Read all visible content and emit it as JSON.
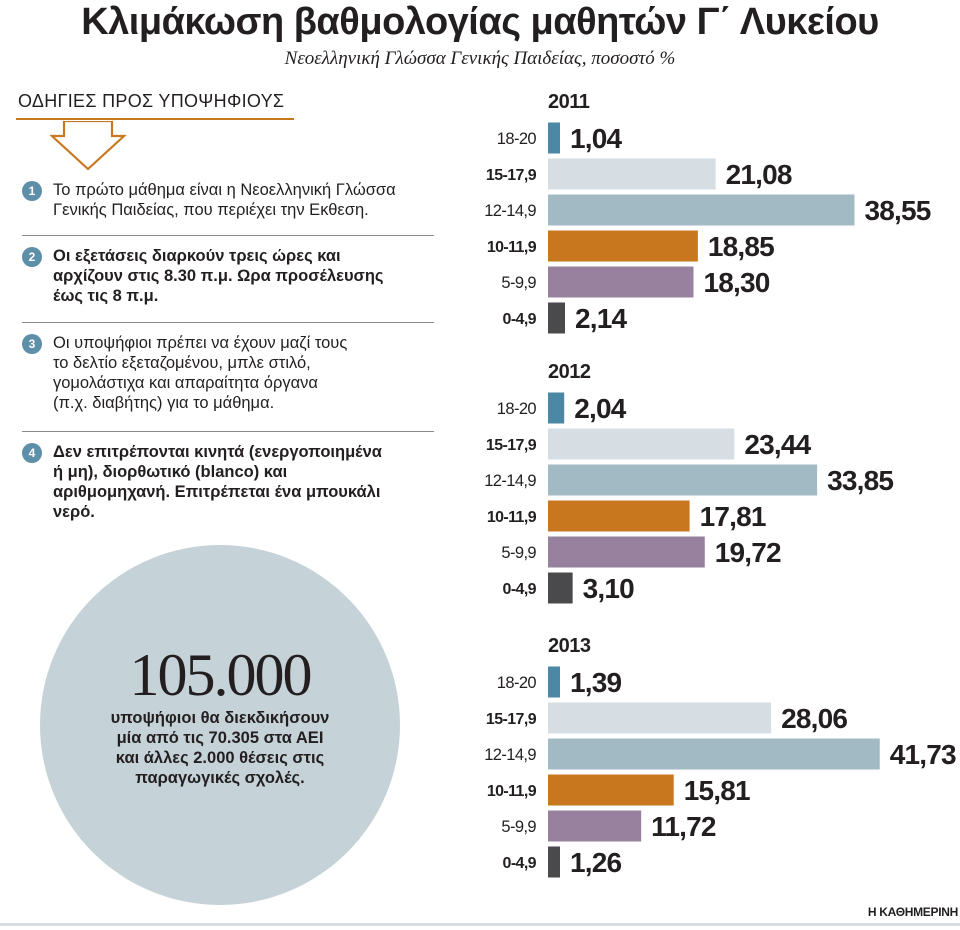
{
  "title": "Κλιμάκωση βαθμολογίας μαθητών Γ΄ Λυκείου",
  "subtitle": "Νεοελληνική Γλώσσα Γενικής Παιδείας, ποσοστό %",
  "guide": {
    "heading": "ΟΔΗΓΙΕΣ ΠΡΟΣ ΥΠΟΨΗΦΙΟΥΣ",
    "items": [
      {
        "num": "1",
        "text": "Το πρώτο μάθημα είναι η Νεοελληνική Γλώσσα\nΓενικής Παιδείας, που περιέχει την Εκθεση."
      },
      {
        "num": "2",
        "text": "Οι εξετάσεις διαρκούν τρεις ώρες και\nαρχίζουν στις 8.30 π.μ. Ωρα προσέλευσης\nέως τις  8 π.μ."
      },
      {
        "num": "3",
        "text": "Οι υποψήφιοι πρέπει να έχουν μαζί τους\nτο δελτίο εξεταζομένου, μπλε στιλό,\nγομολάστιχα και απαραίτητα όργανα\n(π.χ. διαβήτης) για το μάθημα."
      },
      {
        "num": "4",
        "text": "Δεν επιτρέπονται κινητά (ενεργοποιημένα\nή μη), διορθωτικό (blanco) και\nαριθμομηχανή. Επιτρέπεται ένα μπουκάλι\nνερό."
      }
    ]
  },
  "highlight": {
    "number": "105.000",
    "text": "υποψήφιοι θα διεκδικήσουν\nμία από τις 70.305 στα ΑΕΙ\nκαι άλλες 2.000 θέσεις στις\nπαραγωγικές σχολές."
  },
  "source": "Η ΚΑΘΗΜΕΡΙΝΗ",
  "chart_data": {
    "type": "bar",
    "orientation": "horizontal",
    "unit": "%",
    "categories": [
      "18-20",
      "15-17,9",
      "12-14,9",
      "10-11,9",
      "5-9,9",
      "0-4,9"
    ],
    "bold_categories": [
      "15-17,9",
      "10-11,9",
      "0-4,9"
    ],
    "colors": [
      "#4b88a6",
      "#d7dee3",
      "#a2bac4",
      "#c8771e",
      "#97819f",
      "#4a4a4c"
    ],
    "xlim": [
      0,
      45
    ],
    "panels": [
      {
        "title": "2011",
        "values": [
          1.04,
          21.08,
          38.55,
          18.85,
          18.3,
          2.14
        ],
        "labels": [
          "1,04",
          "21,08",
          "38,55",
          "18,85",
          "18,30",
          "2,14"
        ]
      },
      {
        "title": "2012",
        "values": [
          2.04,
          23.44,
          33.85,
          17.81,
          19.72,
          3.1
        ],
        "labels": [
          "2,04",
          "23,44",
          "33,85",
          "17,81",
          "19,72",
          "3,10"
        ]
      },
      {
        "title": "2013",
        "values": [
          1.39,
          28.06,
          41.73,
          15.81,
          11.72,
          1.26
        ],
        "labels": [
          "1,39",
          "28,06",
          "41,73",
          "15,81",
          "11,72",
          "1,26"
        ]
      }
    ]
  }
}
